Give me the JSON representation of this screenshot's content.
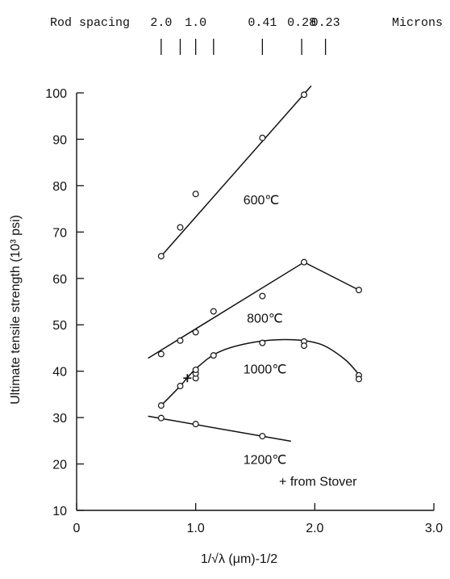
{
  "chart_data": {
    "type": "scatter",
    "xlabel": "1/√λ (μm)-1/2",
    "ylabel": "Ultimate tensile strength (10³ psi)",
    "xlim": [
      0,
      3.0
    ],
    "ylim": [
      10,
      100
    ],
    "xticks": [
      0,
      1.0,
      2.0,
      3.0
    ],
    "xtick_labels": [
      "0",
      "1.0",
      "2.0",
      "3.0"
    ],
    "yticks": [
      10,
      20,
      30,
      40,
      50,
      60,
      70,
      80,
      90,
      100
    ],
    "grid": false,
    "top_axis": {
      "title": "Rod spacing",
      "unit": "Microns",
      "labels": [
        {
          "text": "2.0",
          "x": 0.71
        },
        {
          "text": "1.0",
          "x": 1.0
        },
        {
          "text": "0.41",
          "x": 1.56
        },
        {
          "text": "0.28",
          "x": 1.89
        },
        {
          "text": "0.23",
          "x": 2.09
        }
      ],
      "tick_x": [
        0.71,
        0.87,
        1.0,
        1.15,
        1.56,
        1.89,
        2.09
      ]
    },
    "series": [
      {
        "name": "600℃",
        "points": [
          [
            0.71,
            64.8
          ],
          [
            0.87,
            71
          ],
          [
            1.0,
            78.2
          ],
          [
            1.56,
            90.3
          ],
          [
            1.91,
            99.6
          ]
        ],
        "fit": [
          [
            0.71,
            64.8
          ],
          [
            1.97,
            101.5
          ]
        ]
      },
      {
        "name": "800℃",
        "points": [
          [
            0.71,
            43.7
          ],
          [
            0.87,
            46.6
          ],
          [
            1.0,
            48.4
          ],
          [
            1.15,
            52.9
          ],
          [
            1.56,
            56.2
          ],
          [
            1.91,
            63.5
          ],
          [
            2.37,
            57.5
          ]
        ],
        "fit": [
          [
            0.6,
            42.8
          ],
          [
            1.91,
            63.5
          ],
          [
            2.37,
            57.5
          ]
        ]
      },
      {
        "name": "1000℃",
        "points": [
          [
            0.71,
            32.6
          ],
          [
            0.87,
            36.8
          ],
          [
            1.0,
            38.5
          ],
          [
            1.0,
            39.5
          ],
          [
            1.0,
            40.3
          ],
          [
            1.15,
            43.4
          ],
          [
            1.56,
            46.1
          ],
          [
            1.91,
            46.4
          ],
          [
            1.91,
            45.5
          ],
          [
            2.37,
            39.1
          ],
          [
            2.37,
            38.3
          ]
        ],
        "fit": [
          [
            0.71,
            32.6
          ],
          [
            0.87,
            36.8
          ],
          [
            1.0,
            40.5
          ],
          [
            1.2,
            44.2
          ],
          [
            1.5,
            46.3
          ],
          [
            1.8,
            46.8
          ],
          [
            2.05,
            45.8
          ],
          [
            2.25,
            42.6
          ],
          [
            2.37,
            39.3
          ]
        ]
      },
      {
        "name": "1200℃",
        "points": [
          [
            0.71,
            29.9
          ],
          [
            1.0,
            28.6
          ],
          [
            1.56,
            26.0
          ]
        ],
        "fit": [
          [
            0.6,
            30.3
          ],
          [
            1.8,
            24.9
          ]
        ]
      },
      {
        "name": "from Stover",
        "marker": "+",
        "points": [
          [
            0.93,
            38.5
          ]
        ]
      }
    ],
    "annotations": [
      {
        "text": "600℃",
        "x": 1.4,
        "y": 76
      },
      {
        "text": "800℃",
        "x": 1.43,
        "y": 50.5
      },
      {
        "text": "1000℃",
        "x": 1.4,
        "y": 39.5
      },
      {
        "text": "1200℃",
        "x": 1.4,
        "y": 20
      },
      {
        "text": "+ from Stover",
        "x": 1.7,
        "y": 15.3
      }
    ]
  }
}
